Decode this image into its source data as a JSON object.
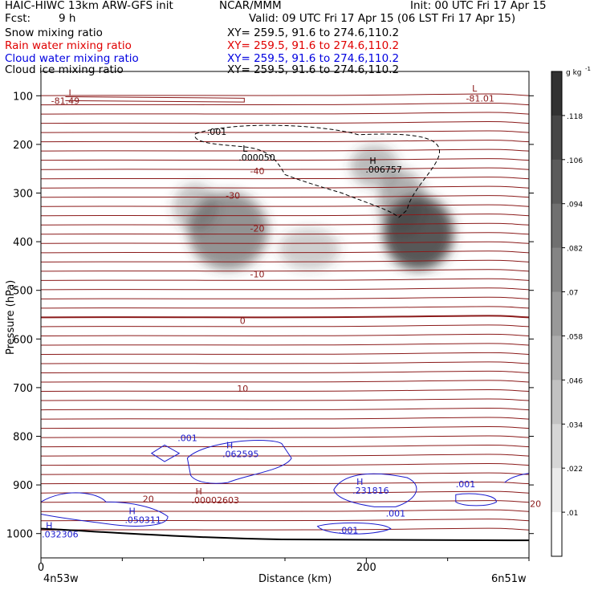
{
  "header": {
    "model": "HAIC-HIWC 13km ARW-GFS init",
    "org": "NCAR/MMM",
    "init": "Init: 00 UTC Fri 17 Apr 15",
    "fcst_label": "Fcst:",
    "fcst_value": "9 h",
    "valid": "Valid: 09 UTC Fri 17 Apr 15 (06 LST Fri 17 Apr 15)"
  },
  "fields": [
    {
      "name": "Snow mixing ratio",
      "xy": "XY= 259.5, 91.6 to 274.6,110.2",
      "color": "#000000"
    },
    {
      "name": "Rain water mixing ratio",
      "xy": "XY= 259.5, 91.6 to 274.6,110.2",
      "color": "#ff0000"
    },
    {
      "name": "Cloud water mixing ratio",
      "xy": "XY= 259.5, 91.6 to 274.6,110.2",
      "color": "#0000ff"
    },
    {
      "name": "Cloud ice mixing ratio",
      "xy": "XY= 259.5, 91.6 to 274.6,110.2",
      "color": "#000000"
    }
  ],
  "colors": {
    "temperature": "#8b1a1a",
    "cloud_water": "#1a1acd",
    "snow_fill_dark": "#3a3a3a",
    "ground": "#000000"
  },
  "chart_data": {
    "type": "heatmap",
    "xlabel": "Distance (km)",
    "ylabel": "Pressure (hPa)",
    "xlim": [
      0,
      300
    ],
    "ylim": [
      1050,
      50
    ],
    "x_ticks": [
      0,
      200
    ],
    "y_ticks": [
      100,
      200,
      300,
      400,
      500,
      600,
      700,
      800,
      900,
      1000
    ],
    "x_ticklabels": [
      "0",
      "200"
    ],
    "y_ticklabels": [
      "100",
      "200",
      "300",
      "400",
      "500",
      "600",
      "700",
      "800",
      "900",
      "1000"
    ],
    "endpoint_left": "4n53w",
    "endpoint_right": "6n51w",
    "colorbar": {
      "unit": "g kg",
      "unit_exp": "-1",
      "levels": [
        0.01,
        0.022,
        0.034,
        0.046,
        0.058,
        0.07,
        0.082,
        0.094,
        0.106,
        0.118
      ],
      "labels": [
        ".01",
        ".022",
        ".034",
        ".046",
        ".058",
        ".07",
        ".082",
        ".094",
        ".106",
        ".118"
      ]
    },
    "snow_max_centers": [
      {
        "x": 232,
        "p": 380,
        "peak": 0.13
      },
      {
        "x": 115,
        "p": 375,
        "peak": 0.09
      },
      {
        "x": 212,
        "p": 255,
        "peak": 0.07
      }
    ],
    "temperature_labels": [
      {
        "text": "-81.49",
        "x": 15,
        "p": 110
      },
      {
        "text": "-81.01",
        "x": 270,
        "p": 105
      },
      {
        "text": "-40",
        "x": 133,
        "p": 255
      },
      {
        "text": "-30",
        "x": 118,
        "p": 305
      },
      {
        "text": "-20",
        "x": 133,
        "p": 373
      },
      {
        "text": "-10",
        "x": 133,
        "p": 467
      },
      {
        "text": "0",
        "x": 124,
        "p": 562
      },
      {
        "text": "10",
        "x": 124,
        "p": 702
      },
      {
        "text": "20",
        "x": 66,
        "p": 929
      },
      {
        "text": "20",
        "x": 304,
        "p": 939
      }
    ],
    "extrema_labels": [
      {
        "letter": "L",
        "value": "",
        "x": 17,
        "p": 100,
        "color": "temperature"
      },
      {
        "letter": "L",
        "value": "",
        "x": 265,
        "p": 91,
        "color": "temperature"
      },
      {
        "letter": "L",
        "value": ".000050",
        "x": 124,
        "p": 215,
        "color": "black"
      },
      {
        "letter": "H",
        "value": ".006757",
        "x": 202,
        "p": 240,
        "color": "black"
      },
      {
        "letter": "H",
        "value": ".00002603",
        "x": 95,
        "p": 920,
        "color": "temperature"
      },
      {
        "letter": "H",
        "value": ".062595",
        "x": 114,
        "p": 825,
        "color": "cloud_water"
      },
      {
        "letter": "H",
        "value": ".050311",
        "x": 54,
        "p": 960,
        "color": "cloud_water"
      },
      {
        "letter": "H",
        "value": ".032306",
        "x": 3,
        "p": 990,
        "color": "cloud_water"
      },
      {
        "letter": "H",
        "value": ".231816",
        "x": 194,
        "p": 900,
        "color": "cloud_water"
      }
    ],
    "contour_value_labels": [
      {
        "text": ".001",
        "x": 102,
        "p": 180,
        "color": "black"
      },
      {
        "text": ".001",
        "x": 84,
        "p": 810,
        "color": "cloud_water"
      },
      {
        "text": ".001",
        "x": 255,
        "p": 905,
        "color": "cloud_water"
      },
      {
        "text": ".001",
        "x": 212,
        "p": 965,
        "color": "cloud_water"
      },
      {
        "text": ".001",
        "x": 183,
        "p": 1000,
        "color": "cloud_water"
      }
    ]
  }
}
